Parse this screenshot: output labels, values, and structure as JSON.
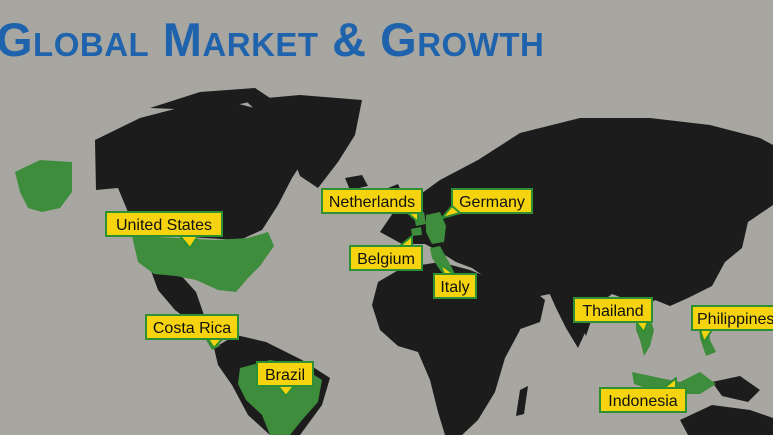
{
  "title": "Global Market & Growth",
  "colors": {
    "background": "#a8a6a1",
    "land": "#1c1c1c",
    "market_country": "#3e8d3c",
    "label_fill": "#f5d40f",
    "label_border": "#2f8f33",
    "title": "#1f63ad"
  },
  "countries": [
    {
      "id": "united-states",
      "name": "United States"
    },
    {
      "id": "costa-rica",
      "name": "Costa Rica"
    },
    {
      "id": "brazil",
      "name": "Brazil"
    },
    {
      "id": "netherlands",
      "name": "Netherlands"
    },
    {
      "id": "germany",
      "name": "Germany"
    },
    {
      "id": "belgium",
      "name": "Belgium"
    },
    {
      "id": "italy",
      "name": "Italy"
    },
    {
      "id": "thailand",
      "name": "Thailand"
    },
    {
      "id": "philippines",
      "name": "Philippines"
    },
    {
      "id": "indonesia",
      "name": "Indonesia"
    }
  ]
}
